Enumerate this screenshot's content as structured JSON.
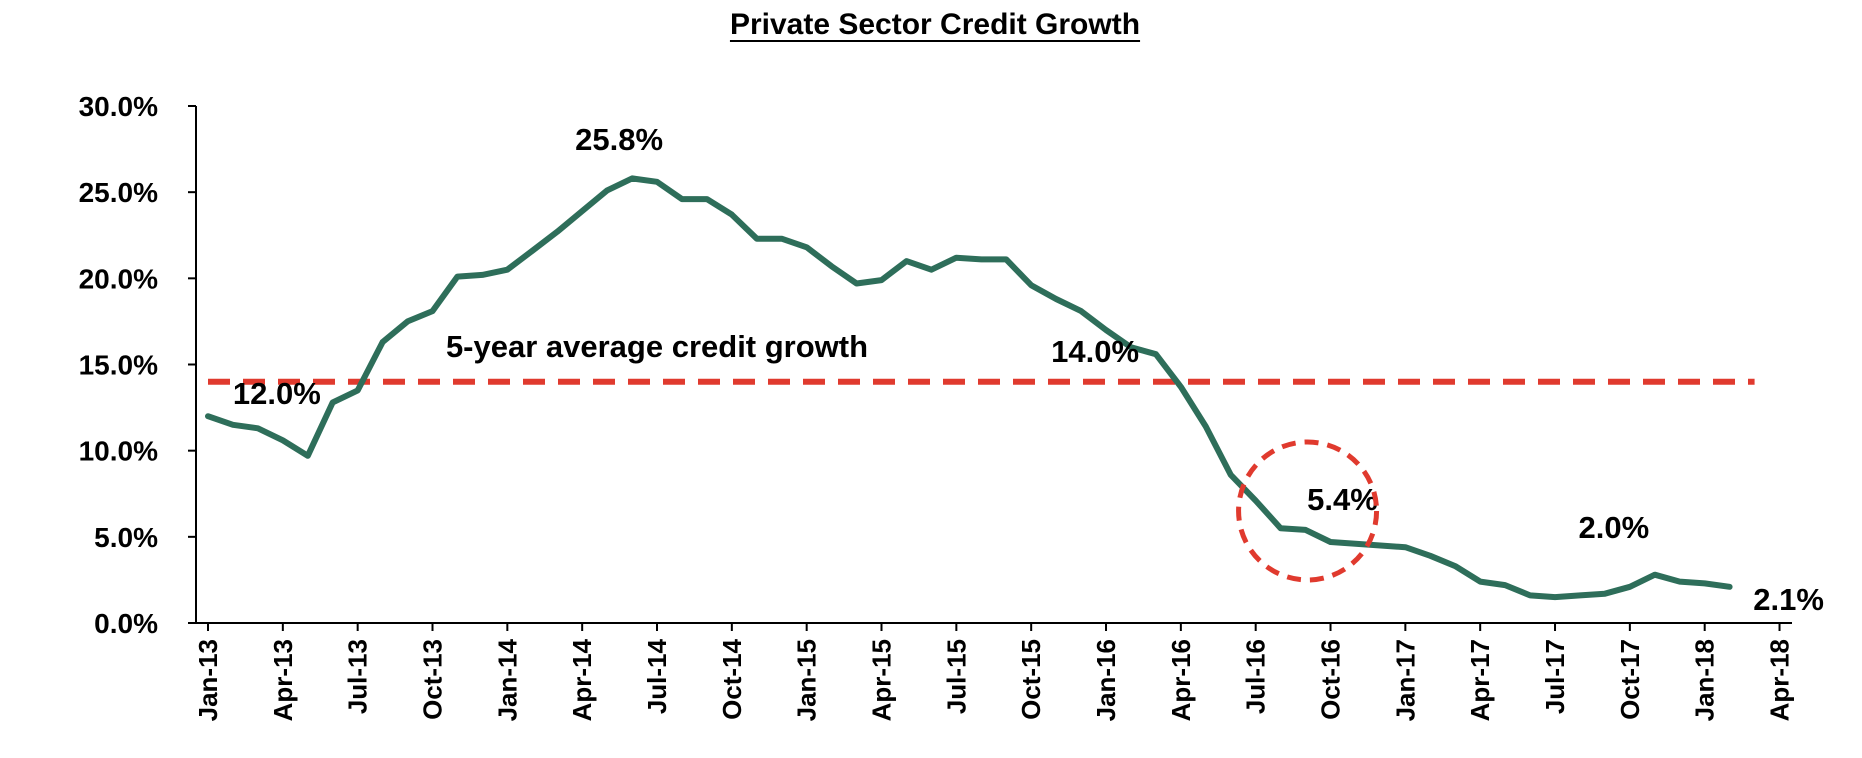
{
  "chart_data": {
    "type": "line",
    "title": "Private Sector Credit Growth",
    "xlabel": "",
    "ylabel": "",
    "ylim": [
      0,
      30
    ],
    "y_ticks": [
      "0.0%",
      "5.0%",
      "10.0%",
      "15.0%",
      "20.0%",
      "25.0%",
      "30.0%"
    ],
    "x_ticks": [
      "Jan-13",
      "Apr-13",
      "Jul-13",
      "Oct-13",
      "Jan-14",
      "Apr-14",
      "Jul-14",
      "Oct-14",
      "Jan-15",
      "Apr-15",
      "Jul-15",
      "Oct-15",
      "Jan-16",
      "Apr-16",
      "Jul-16",
      "Oct-16",
      "Jan-17",
      "Apr-17",
      "Jul-17",
      "Oct-17",
      "Jan-18",
      "Apr-18"
    ],
    "grid": false,
    "legend": "none",
    "colors": {
      "series": "#2e6e5a",
      "average": "#e03a2e",
      "highlight": "#e03a2e"
    },
    "series": [
      {
        "x": [
          "2013-01",
          "2013-02",
          "2013-03",
          "2013-04",
          "2013-05",
          "2013-06",
          "2013-07",
          "2013-08",
          "2013-09",
          "2013-10",
          "2013-11",
          "2013-12",
          "2014-01",
          "2014-02",
          "2014-03",
          "2014-04",
          "2014-05",
          "2014-06",
          "2014-07",
          "2014-08",
          "2014-09",
          "2014-10",
          "2014-11",
          "2014-12",
          "2015-01",
          "2015-02",
          "2015-03",
          "2015-04",
          "2015-05",
          "2015-06",
          "2015-07",
          "2015-08",
          "2015-09",
          "2015-10",
          "2015-11",
          "2015-12",
          "2016-01",
          "2016-02",
          "2016-03",
          "2016-04",
          "2016-05",
          "2016-06",
          "2016-07",
          "2016-08",
          "2016-09",
          "2016-10",
          "2016-11",
          "2016-12",
          "2017-01",
          "2017-02",
          "2017-03",
          "2017-04",
          "2017-05",
          "2017-06",
          "2017-07",
          "2017-08",
          "2017-09",
          "2017-10",
          "2017-11",
          "2017-12",
          "2018-01",
          "2018-02"
        ],
        "values": [
          12.0,
          11.5,
          11.3,
          10.6,
          9.7,
          12.8,
          13.5,
          16.3,
          17.5,
          18.1,
          20.1,
          20.2,
          20.5,
          21.6,
          22.7,
          23.9,
          25.1,
          25.8,
          25.6,
          24.6,
          24.6,
          23.7,
          22.3,
          22.3,
          21.8,
          20.7,
          19.7,
          19.9,
          21.0,
          20.5,
          21.2,
          21.1,
          21.1,
          19.6,
          18.8,
          18.1,
          17.0,
          16.0,
          15.6,
          13.7,
          11.4,
          8.6,
          7.1,
          5.5,
          5.4,
          4.7,
          4.6,
          4.5,
          4.4,
          3.9,
          3.3,
          2.4,
          2.2,
          1.6,
          1.5,
          1.6,
          1.7,
          2.1,
          2.8,
          2.4,
          2.3,
          2.1
        ]
      }
    ],
    "reference_line": {
      "value": 14.0,
      "style": "dashed"
    },
    "annotations": {
      "start": "12.0%",
      "peak": "25.8%",
      "average_label": "5-year average credit growth",
      "average_value": "14.0%",
      "highlight": "5.4%",
      "recent": "2.0%",
      "end": "2.1%"
    },
    "highlight_circle": {
      "x": "2016-09",
      "y": 6.5
    }
  }
}
